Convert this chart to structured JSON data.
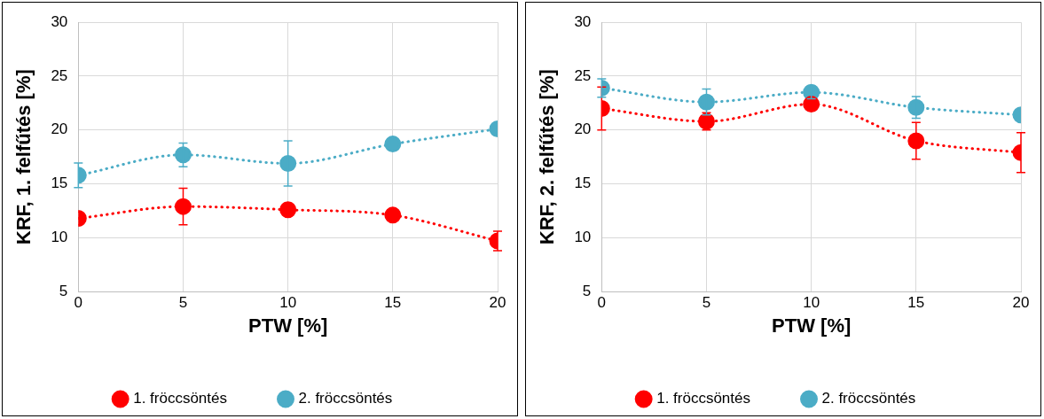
{
  "chart_data": [
    {
      "type": "line",
      "xlabel": "PTW [%]",
      "ylabel": "KRF, 1. felfűtés [%]",
      "x": [
        0,
        5,
        10,
        15,
        20
      ],
      "xlim": [
        0,
        20
      ],
      "xticks": [
        0,
        5,
        10,
        15,
        20
      ],
      "ylim": [
        5,
        30
      ],
      "yticks": [
        5,
        10,
        15,
        20,
        25,
        30
      ],
      "grid": true,
      "legend": "bottom",
      "marker": "circle",
      "line_style": "dotted",
      "series": [
        {
          "name": "1. fröccsöntés",
          "color": "#ff0000",
          "values": [
            11.8,
            12.9,
            12.6,
            12.1,
            9.7
          ],
          "errors": [
            null,
            1.7,
            0.6,
            0.2,
            0.9
          ]
        },
        {
          "name": "2. fröccsöntés",
          "color": "#4bacc6",
          "values": [
            15.8,
            17.7,
            16.9,
            18.7,
            20.1
          ],
          "errors": [
            1.15,
            1.1,
            2.1,
            null,
            null
          ]
        }
      ]
    },
    {
      "type": "line",
      "xlabel": "PTW [%]",
      "ylabel": "KRF, 2. felfűtés [%]",
      "x": [
        0,
        5,
        10,
        15,
        20
      ],
      "xlim": [
        0,
        20
      ],
      "xticks": [
        0,
        5,
        10,
        15,
        20
      ],
      "ylim": [
        5,
        30
      ],
      "yticks": [
        5,
        10,
        15,
        20,
        25,
        30
      ],
      "grid": true,
      "legend": "bottom",
      "marker": "circle",
      "line_style": "dotted",
      "series": [
        {
          "name": "1. fröccsöntés",
          "color": "#ff0000",
          "values": [
            22.0,
            20.8,
            22.4,
            19.0,
            17.9
          ],
          "errors": [
            2.0,
            0.8,
            null,
            1.7,
            1.85
          ]
        },
        {
          "name": "2. fröccsöntés",
          "color": "#4bacc6",
          "values": [
            23.9,
            22.6,
            23.5,
            22.1,
            21.4
          ],
          "errors": [
            0.85,
            1.2,
            0.6,
            1.0,
            null
          ]
        }
      ]
    }
  ]
}
